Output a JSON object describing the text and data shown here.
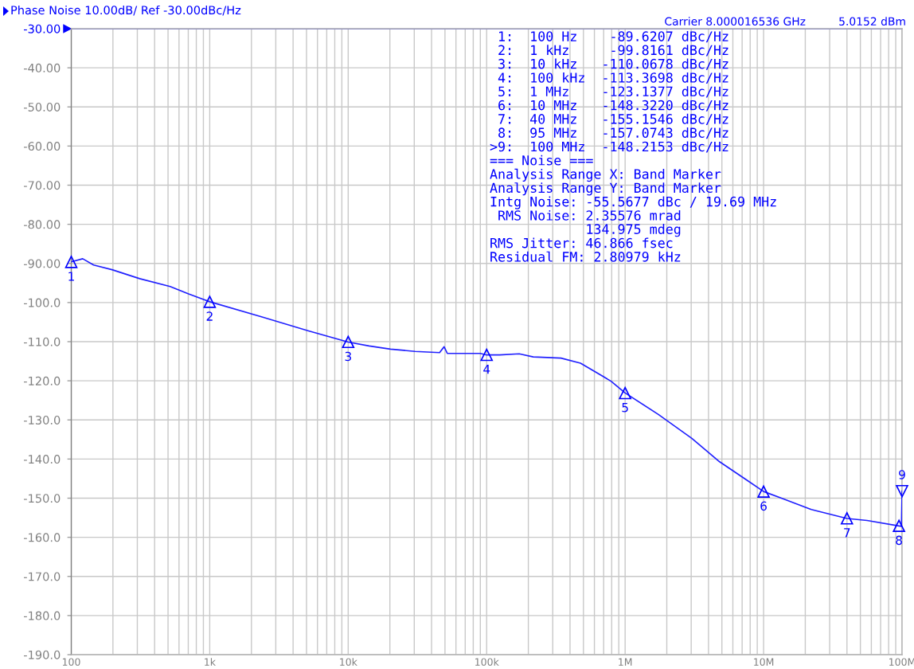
{
  "chart_data": {
    "type": "line",
    "title": "Phase Noise 10.00dB/ Ref -30.00dBc/Hz",
    "subtitle": "Carrier 8.000016536 GHz",
    "log": "x",
    "grid": true,
    "xlim": [
      100,
      100000000
    ],
    "xticks": [
      {
        "value": 100,
        "label": "100"
      },
      {
        "value": 200,
        "label": null
      },
      {
        "value": 300,
        "label": null
      },
      {
        "value": 400,
        "label": null
      },
      {
        "value": 500,
        "label": null
      },
      {
        "value": 600,
        "label": null
      },
      {
        "value": 700,
        "label": null
      },
      {
        "value": 800,
        "label": null
      },
      {
        "value": 900,
        "label": null
      },
      {
        "value": 1000,
        "label": "1k"
      },
      {
        "value": 2000,
        "label": null
      },
      {
        "value": 3000,
        "label": null
      },
      {
        "value": 4000,
        "label": null
      },
      {
        "value": 5000,
        "label": null
      },
      {
        "value": 6000,
        "label": null
      },
      {
        "value": 7000,
        "label": null
      },
      {
        "value": 8000,
        "label": null
      },
      {
        "value": 9000,
        "label": null
      },
      {
        "value": 10000,
        "label": "10k"
      },
      {
        "value": 20000,
        "label": null
      },
      {
        "value": 30000,
        "label": null
      },
      {
        "value": 40000,
        "label": null
      },
      {
        "value": 50000,
        "label": null
      },
      {
        "value": 60000,
        "label": null
      },
      {
        "value": 70000,
        "label": null
      },
      {
        "value": 80000,
        "label": null
      },
      {
        "value": 90000,
        "label": null
      },
      {
        "value": 100000,
        "label": "100k"
      },
      {
        "value": 200000,
        "label": null
      },
      {
        "value": 300000,
        "label": null
      },
      {
        "value": 400000,
        "label": null
      },
      {
        "value": 500000,
        "label": null
      },
      {
        "value": 600000,
        "label": null
      },
      {
        "value": 700000,
        "label": null
      },
      {
        "value": 800000,
        "label": null
      },
      {
        "value": 900000,
        "label": null
      },
      {
        "value": 1000000,
        "label": "1M"
      },
      {
        "value": 2000000,
        "label": null
      },
      {
        "value": 3000000,
        "label": null
      },
      {
        "value": 4000000,
        "label": null
      },
      {
        "value": 5000000,
        "label": null
      },
      {
        "value": 6000000,
        "label": null
      },
      {
        "value": 7000000,
        "label": null
      },
      {
        "value": 8000000,
        "label": null
      },
      {
        "value": 9000000,
        "label": null
      },
      {
        "value": 10000000,
        "label": "10M"
      },
      {
        "value": 20000000,
        "label": null
      },
      {
        "value": 30000000,
        "label": null
      },
      {
        "value": 40000000,
        "label": null
      },
      {
        "value": 50000000,
        "label": null
      },
      {
        "value": 60000000,
        "label": null
      },
      {
        "value": 70000000,
        "label": null
      },
      {
        "value": 80000000,
        "label": null
      },
      {
        "value": 90000000,
        "label": null
      },
      {
        "value": 100000000,
        "label": "100M"
      }
    ],
    "ylim": [
      -190,
      -30
    ],
    "yticks": [
      {
        "value": -30,
        "label": "-30.00"
      },
      {
        "value": -40,
        "label": "-40.00"
      },
      {
        "value": -50,
        "label": "-50.00"
      },
      {
        "value": -60,
        "label": "-60.00"
      },
      {
        "value": -70,
        "label": "-70.00"
      },
      {
        "value": -80,
        "label": "-80.00"
      },
      {
        "value": -90,
        "label": "-90.00"
      },
      {
        "value": -100,
        "label": "-100.0"
      },
      {
        "value": -110,
        "label": "-110.0"
      },
      {
        "value": -120,
        "label": "-120.0"
      },
      {
        "value": -130,
        "label": "-130.0"
      },
      {
        "value": -140,
        "label": "-140.0"
      },
      {
        "value": -150,
        "label": "-150.0"
      },
      {
        "value": -160,
        "label": "-160.0"
      },
      {
        "value": -170,
        "label": "-170.0"
      },
      {
        "value": -180,
        "label": "-180.0"
      },
      {
        "value": -190,
        "label": "-190.0"
      }
    ],
    "ref_lines": [
      {
        "axis": "y",
        "value": -30,
        "color": "#0000ff"
      }
    ],
    "series": [
      {
        "type": "line",
        "color": "#2020ff",
        "marker": "none",
        "line_style": "solid",
        "x": [
          100,
          121,
          145,
          197,
          312,
          518,
          703,
          1000,
          2390,
          5120,
          10000,
          14160,
          20200,
          30400,
          45700,
          49300,
          52000,
          89900,
          100000,
          124400,
          171800,
          216800,
          344100,
          476200,
          628000,
          790800,
          1000000,
          1738000,
          3030000,
          4810000,
          7300000,
          10000000,
          13940000,
          22140000,
          40000000,
          55860000,
          95000000,
          99000000,
          100000000
        ],
        "values": [
          -89.6,
          -88.8,
          -90.4,
          -91.6,
          -93.9,
          -95.9,
          -97.8,
          -99.8,
          -103.7,
          -107.2,
          -110.1,
          -111.1,
          -111.9,
          -112.5,
          -112.8,
          -111.3,
          -113.0,
          -113.0,
          -113.4,
          -113.4,
          -113.1,
          -113.9,
          -114.2,
          -115.5,
          -118.0,
          -120.1,
          -123.1,
          -128.6,
          -134.7,
          -140.7,
          -145.0,
          -148.3,
          -150.2,
          -152.9,
          -155.2,
          -155.7,
          -157.1,
          -157.2,
          -148.2
        ]
      },
      {
        "type": "scatter",
        "color": "#0000ff",
        "marker": "triangle",
        "x": [
          100,
          1000,
          10000,
          100000,
          1000000,
          10000000,
          40000000,
          95000000
        ],
        "values": [
          -89.6207,
          -99.8161,
          -110.0678,
          -113.3698,
          -123.1377,
          -148.322,
          -155.1546,
          -157.0743
        ]
      },
      {
        "type": "scatter",
        "color": "#0000ff",
        "marker": "triangle_down",
        "x": [
          100000000
        ],
        "values": [
          -148.2153
        ]
      }
    ],
    "annotations": [
      "5.0152 dBm",
      " 1:  100 Hz    -89.6207 dBc/Hz",
      " 2:  1 kHz     -99.8161 dBc/Hz",
      " 3:  10 kHz   -110.0678 dBc/Hz",
      " 4:  100 kHz  -113.3698 dBc/Hz",
      " 5:  1 MHz    -123.1377 dBc/Hz",
      " 6:  10 MHz   -148.3220 dBc/Hz",
      " 7:  40 MHz   -155.1546 dBc/Hz",
      " 8:  95 MHz   -157.0743 dBc/Hz",
      ">9:  100 MHz  -148.2153 dBc/Hz",
      "=== Noise ===",
      "Analysis Range X: Band Marker",
      "Analysis Range Y: Band Marker",
      "Intg Noise: -55.5677 dBc / 19.69 MHz",
      " RMS Noise: 2.35576 mrad",
      "            134.975 mdeg",
      "RMS Jitter: 46.866 fsec",
      "Residual FM: 2.80979 kHz",
      {
        "text": "1",
        "x": 100,
        "y": -89.6207
      },
      {
        "text": "2",
        "x": 1000,
        "y": -99.8161
      },
      {
        "text": "3",
        "x": 10000,
        "y": -110.0678
      },
      {
        "text": "4",
        "x": 100000,
        "y": -113.3698
      },
      {
        "text": "5",
        "x": 1000000,
        "y": -123.1377
      },
      {
        "text": "6",
        "x": 10000000,
        "y": -148.322
      },
      {
        "text": "7",
        "x": 40000000,
        "y": -155.1546
      },
      {
        "text": "8",
        "x": 95000000,
        "y": -157.0743
      },
      {
        "text": "9",
        "x": 100000000,
        "y": -148.2153
      }
    ]
  }
}
